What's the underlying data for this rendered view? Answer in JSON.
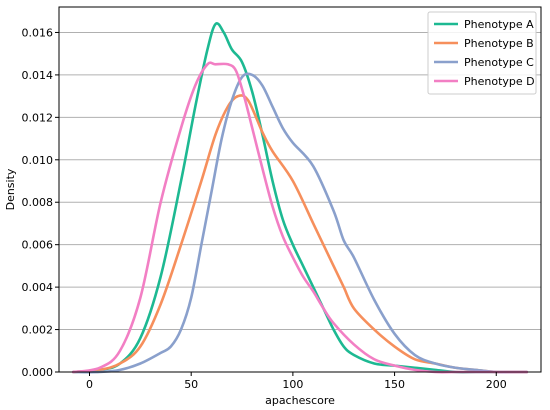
{
  "chart_data": {
    "type": "line",
    "title": "",
    "xlabel": "apachescore",
    "ylabel": "Density",
    "xlim": [
      -15,
      222
    ],
    "ylim": [
      0,
      0.0172
    ],
    "x_ticks": [
      0,
      50,
      100,
      150,
      200
    ],
    "y_ticks": [
      0.0,
      0.002,
      0.004,
      0.006,
      0.008,
      0.01,
      0.012,
      0.014,
      0.016
    ],
    "y_tick_labels": [
      "0.000",
      "0.002",
      "0.004",
      "0.006",
      "0.008",
      "0.010",
      "0.012",
      "0.014",
      "0.016"
    ],
    "grid": "horizontal",
    "legend_position": "top-right",
    "series": [
      {
        "name": "Phenotype A",
        "color": "#1db992",
        "x": [
          -8,
          5,
          15,
          25,
          35,
          45,
          52,
          58,
          62,
          66,
          70,
          75,
          80,
          85,
          90,
          95,
          100,
          105,
          110,
          115,
          120,
          125,
          130,
          140,
          150,
          160,
          170,
          180,
          190,
          200,
          210,
          215
        ],
        "y": [
          0.0,
          0.0001,
          0.0004,
          0.0016,
          0.0045,
          0.009,
          0.0125,
          0.0152,
          0.0164,
          0.016,
          0.0152,
          0.0146,
          0.0132,
          0.0112,
          0.009,
          0.0072,
          0.006,
          0.005,
          0.004,
          0.003,
          0.002,
          0.0012,
          0.0008,
          0.0004,
          0.0003,
          0.0002,
          0.0001,
          0.0,
          0.0,
          0.0,
          0.0,
          0.0
        ]
      },
      {
        "name": "Phenotype B",
        "color": "#f68f5c",
        "x": [
          -8,
          5,
          15,
          25,
          35,
          45,
          55,
          62,
          68,
          73,
          78,
          85,
          90,
          100,
          110,
          115,
          120,
          125,
          130,
          140,
          150,
          160,
          170,
          180,
          190,
          200,
          210,
          215
        ],
        "y": [
          0.0,
          0.0001,
          0.0004,
          0.0012,
          0.0032,
          0.006,
          0.009,
          0.0112,
          0.0125,
          0.013,
          0.0128,
          0.0113,
          0.0104,
          0.009,
          0.007,
          0.006,
          0.005,
          0.004,
          0.003,
          0.002,
          0.0012,
          0.0006,
          0.0004,
          0.0002,
          0.0001,
          0.0,
          0.0,
          0.0
        ]
      },
      {
        "name": "Phenotype C",
        "color": "#8aa0cc",
        "x": [
          -8,
          5,
          15,
          25,
          35,
          40,
          45,
          50,
          55,
          60,
          65,
          70,
          75,
          80,
          85,
          90,
          95,
          100,
          110,
          120,
          125,
          130,
          140,
          150,
          160,
          170,
          180,
          190,
          200,
          210,
          215
        ],
        "y": [
          0.0,
          0.0,
          0.0001,
          0.0004,
          0.0009,
          0.0012,
          0.002,
          0.0035,
          0.006,
          0.0085,
          0.011,
          0.0128,
          0.0139,
          0.014,
          0.0135,
          0.0125,
          0.0115,
          0.0108,
          0.0097,
          0.0076,
          0.0062,
          0.0054,
          0.0034,
          0.0018,
          0.0008,
          0.0004,
          0.0002,
          0.0001,
          0.0,
          0.0,
          0.0
        ]
      },
      {
        "name": "Phenotype D",
        "color": "#f27fc4",
        "x": [
          -8,
          5,
          15,
          25,
          35,
          45,
          52,
          58,
          62,
          68,
          72,
          76,
          80,
          85,
          90,
          95,
          100,
          105,
          110,
          115,
          120,
          130,
          140,
          150,
          160,
          170,
          180,
          190,
          200,
          210,
          215
        ],
        "y": [
          0.0,
          0.0002,
          0.001,
          0.0035,
          0.008,
          0.0115,
          0.0135,
          0.0145,
          0.0145,
          0.0145,
          0.0142,
          0.013,
          0.0115,
          0.0096,
          0.0078,
          0.0064,
          0.0054,
          0.0045,
          0.0038,
          0.003,
          0.0023,
          0.0013,
          0.0006,
          0.0003,
          0.0001,
          0.0,
          0.0,
          0.0,
          0.0,
          0.0,
          0.0
        ]
      }
    ]
  }
}
